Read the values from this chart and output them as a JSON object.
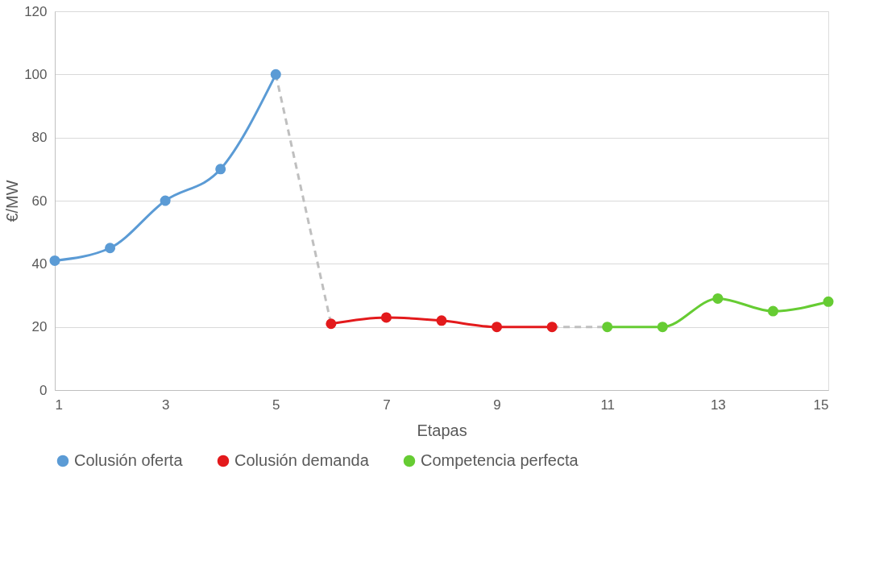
{
  "chart_data": {
    "type": "line",
    "xlabel": "Etapas",
    "ylabel": "€/MW",
    "xlim": [
      1,
      15
    ],
    "xticks": [
      1,
      3,
      5,
      7,
      9,
      11,
      13,
      15
    ],
    "ylim": [
      0,
      120
    ],
    "yticks": [
      0,
      20,
      40,
      60,
      80,
      100,
      120
    ],
    "grid": "y",
    "legend": "bottom",
    "marker": "circle",
    "line_style": "solid",
    "series": [
      {
        "name": "Colusión oferta",
        "color": "#5b9bd5",
        "x": [
          1,
          2,
          3,
          4,
          5
        ],
        "values": [
          41,
          45,
          60,
          70,
          100
        ]
      },
      {
        "name": "Colusión demanda",
        "color": "#e31a1c",
        "x": [
          6,
          7,
          8,
          9,
          10
        ],
        "values": [
          21,
          23,
          22,
          20,
          20
        ]
      },
      {
        "name": "Competencia perfecta",
        "color": "#66cc33",
        "x": [
          11,
          12,
          13,
          14,
          15
        ],
        "values": [
          20,
          20,
          29,
          25,
          28
        ]
      },
      {
        "color": "#bfbfbf",
        "x": [
          5,
          6
        ],
        "values": [
          100,
          21
        ],
        "marker": "none",
        "line_style": "dashed"
      },
      {
        "color": "#bfbfbf",
        "x": [
          10,
          11
        ],
        "values": [
          20,
          20
        ],
        "marker": "none",
        "line_style": "dashed"
      }
    ]
  }
}
